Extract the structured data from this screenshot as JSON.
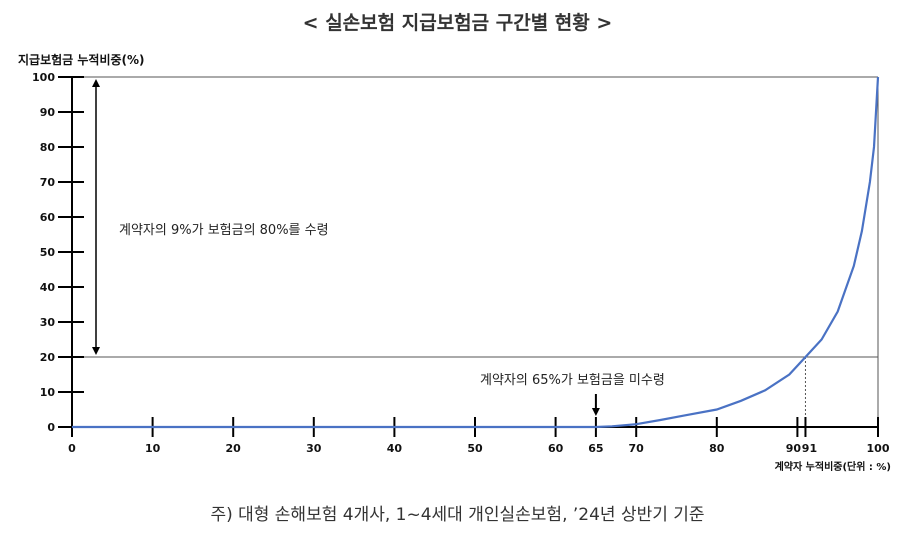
{
  "title": "< 실손보험 지급보험금 구간별 현황 >",
  "footnote": "주) 대형 손해보험 4개사, 1~4세대 개인실손보험, ’24년 상반기 기준",
  "colors": {
    "curve": "#4a72c4",
    "axis": "#000000"
  },
  "chart_data": {
    "type": "line",
    "title": "< 실손보험 지급보험금 구간별 현황 >",
    "ylabel": "지급보험금 누적비중(%)",
    "xlabel": "계약자 누적비중(단위 : %)",
    "xlim": [
      0,
      100
    ],
    "ylim": [
      0,
      100
    ],
    "x_ticks": [
      0,
      10,
      20,
      30,
      40,
      50,
      60,
      65,
      70,
      80,
      90,
      91,
      100
    ],
    "y_ticks": [
      0,
      10,
      20,
      30,
      40,
      50,
      60,
      70,
      80,
      90,
      100
    ],
    "grid": false,
    "series": [
      {
        "x": [
          0,
          10,
          20,
          30,
          40,
          50,
          60,
          65,
          67,
          70,
          73,
          76,
          80,
          83,
          86,
          89,
          91,
          93,
          95,
          97,
          98,
          99,
          99.5,
          100
        ],
        "y": [
          0,
          0,
          0,
          0,
          0,
          0,
          0,
          0,
          0.2,
          0.8,
          2,
          3.3,
          5,
          7.5,
          10.5,
          15,
          20,
          25,
          33,
          46,
          56,
          70,
          80,
          100
        ]
      }
    ],
    "reference_lines": [
      {
        "axis": "y",
        "value": 20
      },
      {
        "axis": "y",
        "value": 100
      },
      {
        "axis": "x",
        "value": 91
      },
      {
        "axis": "x",
        "value": 100
      }
    ],
    "annotations": [
      {
        "text": "계약자의 9%가 보험금의 80%를 수령"
      },
      {
        "text": "계약자의 65%가 보험금을 미수령"
      }
    ]
  }
}
